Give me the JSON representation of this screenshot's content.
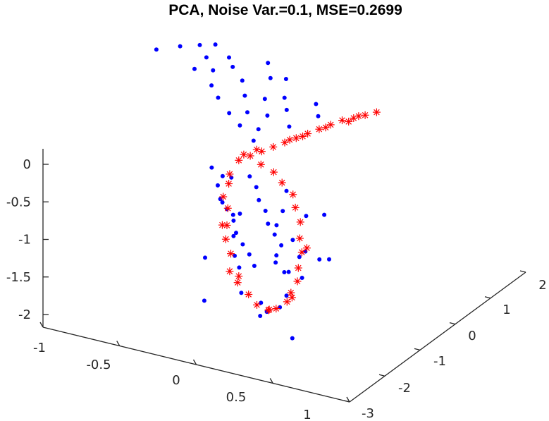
{
  "chart_data": {
    "type": "scatter",
    "title": "PCA, Noise Var.=0.1, MSE=0.2699",
    "view": "3d",
    "grid": false,
    "xlabel": "",
    "ylabel": "",
    "zlabel": "",
    "x_ticks": [
      "-1",
      "-0.5",
      "0",
      "0.5",
      "1"
    ],
    "y_ticks": [
      "-3",
      "-2",
      "-1",
      "0",
      "1",
      "2"
    ],
    "z_ticks": [
      "0",
      "-0.5",
      "-1",
      "-1.5",
      "-2"
    ],
    "xlim": [
      -1,
      1
    ],
    "ylim": [
      -3,
      2
    ],
    "zlim": [
      -2.2,
      0.2
    ],
    "series": [
      {
        "marker": "dot",
        "color": "#0000ff",
        "points": [
          [
            -0.95,
            0.8,
            0.95
          ],
          [
            -0.9,
            1.2,
            0.9
          ],
          [
            -0.85,
            1.5,
            0.85
          ],
          [
            -0.8,
            1.7,
            0.82
          ],
          [
            -0.75,
            1.3,
            0.78
          ],
          [
            -0.72,
            0.9,
            0.75
          ],
          [
            -0.68,
            1.6,
            0.72
          ],
          [
            -0.65,
            1.1,
            0.7
          ],
          [
            -0.6,
            1.4,
            0.68
          ],
          [
            -0.55,
            0.7,
            0.65
          ],
          [
            -0.5,
            1.9,
            0.63
          ],
          [
            -0.48,
            1.2,
            0.6
          ],
          [
            -0.45,
            0.5,
            0.58
          ],
          [
            -0.4,
            1.6,
            0.55
          ],
          [
            -0.38,
            0.9,
            0.52
          ],
          [
            -0.35,
            1.8,
            0.5
          ],
          [
            -0.32,
            0.3,
            0.48
          ],
          [
            -0.3,
            1.1,
            0.45
          ],
          [
            -0.28,
            0.6,
            0.42
          ],
          [
            -0.25,
            1.4,
            0.4
          ],
          [
            -0.22,
            0.2,
            0.38
          ],
          [
            -0.2,
            0.8,
            0.35
          ],
          [
            -0.18,
            1.2,
            0.32
          ],
          [
            -0.15,
            0.4,
            0.3
          ],
          [
            -0.12,
            1.7,
            0.28
          ],
          [
            -0.1,
            0.1,
            0.25
          ],
          [
            -0.08,
            0.9,
            0.22
          ],
          [
            -0.05,
            1.5,
            0.2
          ],
          [
            0.05,
            -1.2,
            0.2
          ],
          [
            0.1,
            -1.5,
            0.18
          ],
          [
            0.15,
            -0.9,
            0.15
          ],
          [
            0.2,
            -1.8,
            0.12
          ],
          [
            0.25,
            -1.1,
            0.1
          ],
          [
            0.3,
            -2.0,
            0.08
          ],
          [
            0.35,
            -1.4,
            0.05
          ],
          [
            0.4,
            -2.2,
            0.02
          ],
          [
            0.45,
            -1.6,
            0.0
          ],
          [
            0.5,
            -2.5,
            -0.02
          ],
          [
            0.55,
            -1.9,
            -0.05
          ],
          [
            0.6,
            -2.7,
            -0.08
          ],
          [
            0.65,
            -2.1,
            -0.1
          ],
          [
            0.7,
            -2.9,
            -0.12
          ],
          [
            0.75,
            -2.3,
            -0.15
          ],
          [
            0.8,
            -2.6,
            -0.18
          ],
          [
            0.85,
            -2.8,
            -0.2
          ],
          [
            0.9,
            -2.4,
            -0.22
          ],
          [
            0.95,
            -2.95,
            -0.25
          ],
          [
            0.98,
            -2.2,
            -0.28
          ],
          [
            -0.3,
            -0.2,
            -0.1
          ],
          [
            -0.25,
            0.1,
            -0.3
          ],
          [
            -0.2,
            -0.3,
            -0.5
          ],
          [
            -0.22,
            0.2,
            -0.8
          ],
          [
            -0.18,
            -0.1,
            -1.0
          ],
          [
            -0.2,
            0.0,
            -1.3
          ],
          [
            -0.15,
            0.3,
            -1.5
          ],
          [
            -0.1,
            -0.2,
            -1.7
          ],
          [
            -0.05,
            0.1,
            -1.9
          ],
          [
            0.0,
            -0.1,
            -2.0
          ],
          [
            0.05,
            0.2,
            -1.95
          ],
          [
            0.1,
            -0.3,
            -1.85
          ],
          [
            0.15,
            0.0,
            -1.7
          ],
          [
            0.2,
            0.2,
            -1.5
          ],
          [
            0.22,
            -0.2,
            -1.3
          ],
          [
            0.25,
            0.1,
            -1.1
          ],
          [
            0.22,
            -0.1,
            -0.9
          ],
          [
            0.2,
            0.3,
            -0.7
          ],
          [
            0.18,
            -0.2,
            -0.5
          ],
          [
            0.15,
            0.0,
            -0.3
          ],
          [
            -0.28,
            0.4,
            -1.6
          ],
          [
            -0.35,
            -0.2,
            -1.9
          ],
          [
            0.3,
            -0.4,
            -2.1
          ],
          [
            0.3,
            0.5,
            -1.3
          ],
          [
            -0.4,
            0.0,
            -1.4
          ],
          [
            0.35,
            0.2,
            -0.6
          ],
          [
            0.0,
            0.3,
            -0.9
          ],
          [
            -0.1,
            -0.4,
            -0.6
          ]
        ]
      },
      {
        "marker": "asterisk",
        "color": "#ff0000",
        "points": [
          [
            -0.2,
            0.1,
            -0.05
          ],
          [
            -0.15,
            0.2,
            0.0
          ],
          [
            -0.1,
            0.3,
            0.05
          ],
          [
            -0.05,
            0.4,
            0.1
          ],
          [
            0.0,
            0.5,
            0.15
          ],
          [
            0.05,
            0.6,
            0.2
          ],
          [
            0.1,
            0.7,
            0.25
          ],
          [
            0.15,
            0.8,
            0.3
          ],
          [
            0.2,
            0.9,
            0.35
          ],
          [
            0.25,
            1.0,
            0.4
          ],
          [
            0.3,
            1.1,
            0.42
          ],
          [
            0.35,
            1.2,
            0.45
          ],
          [
            -0.18,
            0.15,
            0.02
          ],
          [
            -0.12,
            0.25,
            0.08
          ],
          [
            0.02,
            0.55,
            0.18
          ],
          [
            0.08,
            0.65,
            0.22
          ],
          [
            0.18,
            0.85,
            0.32
          ],
          [
            0.28,
            1.05,
            0.38
          ],
          [
            0.32,
            1.15,
            0.44
          ],
          [
            0.4,
            1.3,
            0.48
          ],
          [
            -0.22,
            -0.05,
            -0.2
          ],
          [
            -0.24,
            0.0,
            -0.35
          ],
          [
            -0.25,
            -0.1,
            -0.5
          ],
          [
            -0.26,
            0.05,
            -0.7
          ],
          [
            -0.27,
            -0.05,
            -0.9
          ],
          [
            -0.26,
            0.0,
            -1.1
          ],
          [
            -0.24,
            0.05,
            -1.3
          ],
          [
            -0.22,
            -0.05,
            -1.5
          ],
          [
            -0.18,
            0.0,
            -1.65
          ],
          [
            -0.12,
            0.05,
            -1.8
          ],
          [
            -0.05,
            0.0,
            -1.9
          ],
          [
            0.02,
            0.05,
            -1.95
          ],
          [
            0.08,
            0.0,
            -1.9
          ],
          [
            0.14,
            0.05,
            -1.8
          ],
          [
            0.18,
            0.0,
            -1.65
          ],
          [
            0.21,
            0.05,
            -1.5
          ],
          [
            0.23,
            0.0,
            -1.3
          ],
          [
            0.24,
            0.05,
            -1.1
          ],
          [
            0.24,
            0.0,
            -0.9
          ],
          [
            0.23,
            0.05,
            -0.7
          ],
          [
            0.21,
            0.0,
            -0.5
          ],
          [
            0.18,
            0.05,
            -0.35
          ],
          [
            0.12,
            0.0,
            -0.2
          ],
          [
            0.05,
            0.05,
            -0.1
          ],
          [
            -0.05,
            0.1,
            -0.05
          ],
          [
            -0.28,
            0.1,
            -0.95
          ],
          [
            0.26,
            0.1,
            -1.05
          ],
          [
            -0.2,
            0.1,
            -1.6
          ],
          [
            0.16,
            0.1,
            -1.75
          ],
          [
            0.0,
            0.1,
            -1.98
          ]
        ]
      }
    ]
  }
}
